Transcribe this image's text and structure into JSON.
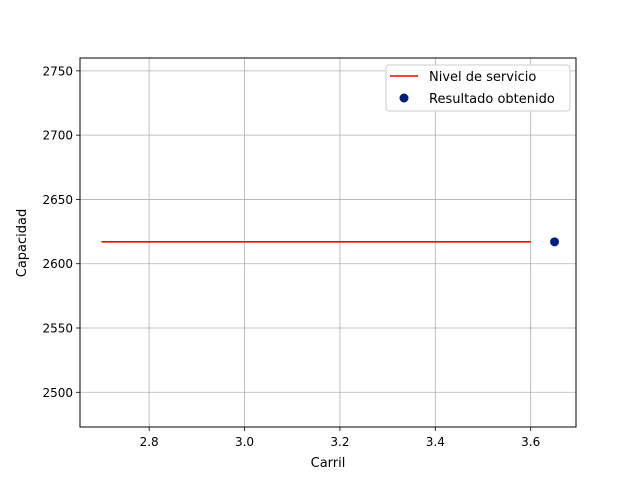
{
  "chart_data": {
    "type": "line",
    "xlabel": "Carril",
    "ylabel": "Capacidad",
    "xlim": [
      2.655,
      3.695
    ],
    "ylim": [
      2473,
      2760
    ],
    "x_ticks": [
      2.8,
      3.0,
      3.2,
      3.4,
      3.6
    ],
    "x_tick_labels": [
      "2.8",
      "3.0",
      "3.2",
      "3.4",
      "3.6"
    ],
    "y_ticks": [
      2500,
      2550,
      2600,
      2650,
      2700,
      2750
    ],
    "y_tick_labels": [
      "2500",
      "2550",
      "2600",
      "2650",
      "2700",
      "2750"
    ],
    "grid": true,
    "legend_position": "top-right",
    "series": [
      {
        "name": "Nivel de servicio",
        "kind": "line",
        "color": "#ff0000",
        "x": [
          2.7,
          3.6
        ],
        "y": [
          2617,
          2617
        ]
      },
      {
        "name": "Resultado obtenido",
        "kind": "scatter",
        "color": "#001f7a",
        "x": [
          3.65
        ],
        "y": [
          2617
        ]
      }
    ]
  }
}
